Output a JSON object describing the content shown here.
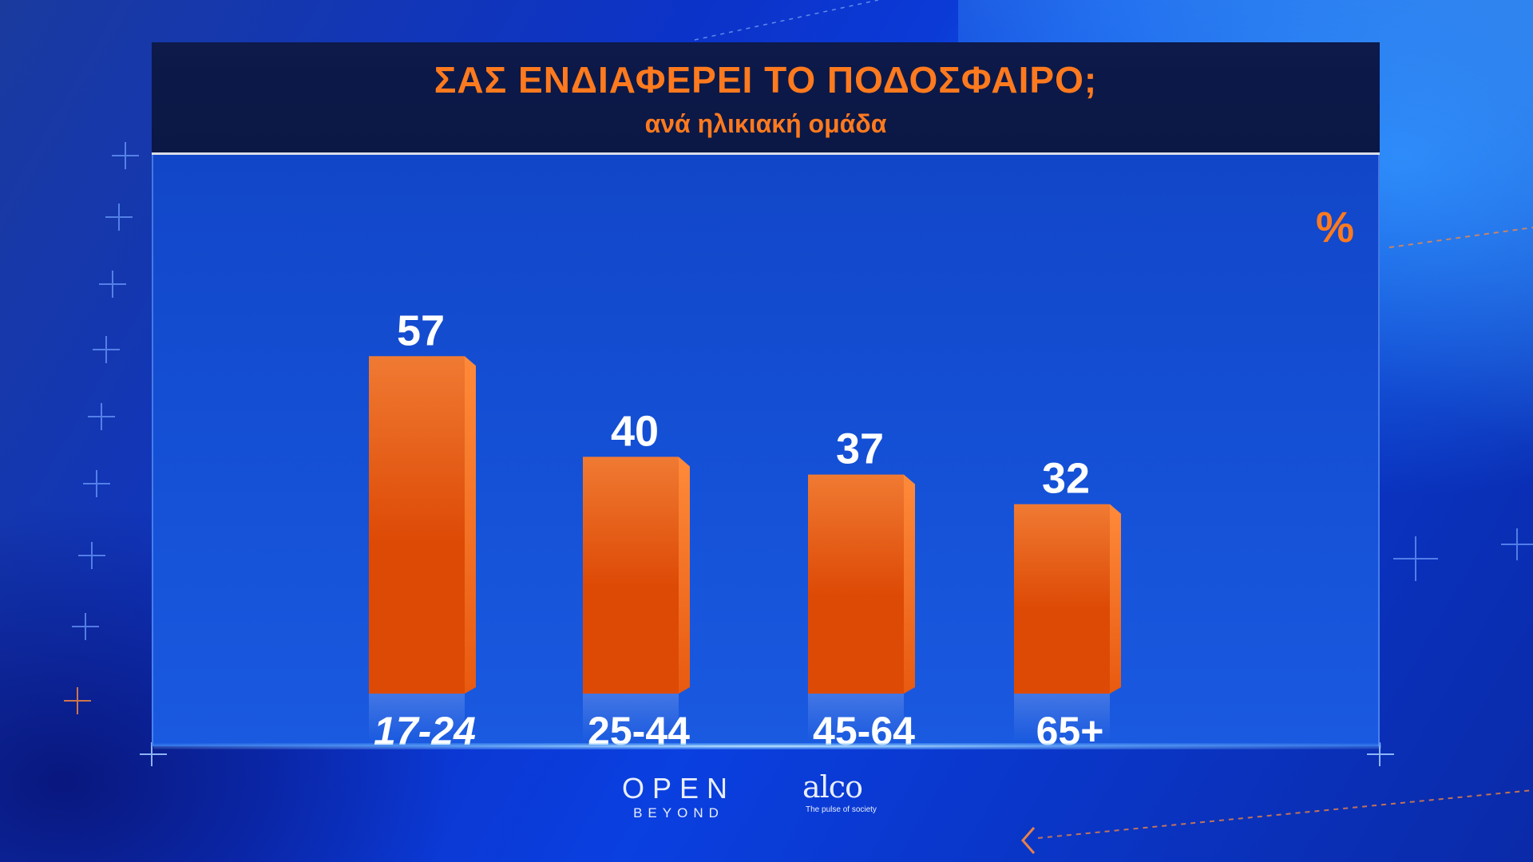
{
  "header": {
    "title": "ΣΑΣ ΕΝΔΙΑΦΕΡΕΙ ΤΟ ΠΟΔΟΣΦΑΙΡΟ;",
    "subtitle": "ανά ηλικιακή ομάδα"
  },
  "unit_label": "%",
  "colors": {
    "bar_top": "#f07a32",
    "bar_bottom": "#dd4a06",
    "bar_side": "#ff8a3a",
    "title": "#ff7a1e",
    "label": "#ffffff"
  },
  "chart_data": {
    "type": "bar",
    "categories": [
      "17-24",
      "25-44",
      "45-64",
      "65+"
    ],
    "values": [
      57,
      40,
      37,
      32
    ],
    "title": "ΣΑΣ ΕΝΔΙΑΦΕΡΕΙ ΤΟ ΠΟΔΟΣΦΑΙΡΟ;",
    "subtitle": "ανά ηλικιακή ομάδα",
    "xlabel": "",
    "ylabel": "%",
    "ylim": [
      0,
      60
    ],
    "grid": false,
    "data_labels": true
  },
  "logos": {
    "open_main": "OPEN",
    "open_sub": "BEYOND",
    "alco_main": "alco",
    "alco_tagline": "The pulse of society"
  }
}
